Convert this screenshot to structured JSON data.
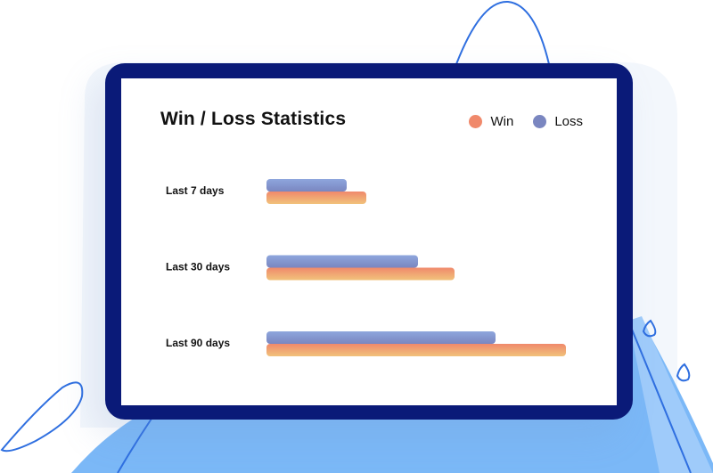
{
  "chart_data": {
    "type": "bar",
    "orientation": "horizontal",
    "title": "Win / Loss Statistics",
    "xlabel": "",
    "ylabel": "",
    "grid": false,
    "legend_position": "top-right",
    "categories": [
      "Last 7 days",
      "Last 30 days",
      "Last 90 days"
    ],
    "series": [
      {
        "name": "Loss",
        "values": [
          90,
          170,
          257
        ],
        "color": "#7a86c0"
      },
      {
        "name": "Win",
        "values": [
          112,
          211,
          336
        ],
        "color": "#f0896b"
      }
    ],
    "xlim": [
      0,
      340
    ]
  },
  "colors": {
    "device_frame": "#0a1a78",
    "screen": "#ffffff",
    "loss_gradient": [
      "#8ea6dd",
      "#7a86c0"
    ],
    "win_gradient": [
      "#f1c27b",
      "#f0896b"
    ],
    "backdrop_blue": "#7bb8f7",
    "outline_blue": "#2f6fe0"
  }
}
